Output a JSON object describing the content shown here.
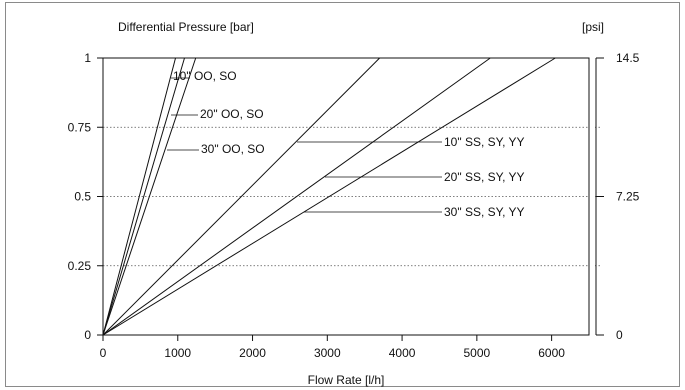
{
  "chart_data": {
    "type": "line",
    "title": "",
    "ylabel": "Differential Pressure [bar]",
    "ylabel_right": "[psi]",
    "xlabel": "Flow Rate [l/h]",
    "xlim": [
      0,
      6500
    ],
    "ylim": [
      0,
      1
    ],
    "x_ticks": [
      "0",
      "1000",
      "2000",
      "3000",
      "4000",
      "5000",
      "6000"
    ],
    "y_ticks": [
      "0",
      "0.25",
      "0.5",
      "0.75",
      "1"
    ],
    "y_ticks_right": [
      "0",
      "7.25",
      "14.5"
    ],
    "grid": "dotted horizontal at 0.25, 0.5, 0.75",
    "series": [
      {
        "name": "10\" OO, SO",
        "x": [
          0,
          970
        ],
        "y": [
          0,
          1
        ]
      },
      {
        "name": "20\" OO, SO",
        "x": [
          0,
          1090
        ],
        "y": [
          0,
          1
        ]
      },
      {
        "name": "30\" OO, SO",
        "x": [
          0,
          1240
        ],
        "y": [
          0,
          1
        ]
      },
      {
        "name": "10\" SS, SY, YY",
        "x": [
          0,
          3700
        ],
        "y": [
          0,
          1
        ]
      },
      {
        "name": "20\" SS, SY, YY",
        "x": [
          0,
          5180
        ],
        "y": [
          0,
          1
        ]
      },
      {
        "name": "30\" SS, SY, YY",
        "x": [
          0,
          6050
        ],
        "y": [
          0,
          1
        ]
      }
    ]
  }
}
